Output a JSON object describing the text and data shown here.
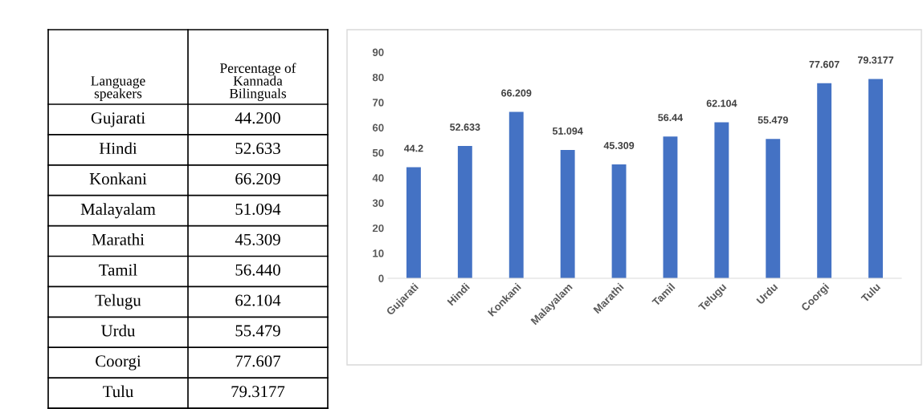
{
  "chart_data": [
    {
      "type": "other",
      "annotations": [
        "Language speakers",
        "Percentage of Kannada Bilinguals",
        "Gujarati",
        "44.200",
        "Hindi",
        "52.633",
        "Konkani",
        "66.209",
        "Malayalam",
        "51.094",
        "Marathi",
        "45.309",
        "Tamil",
        "56.440",
        "Telugu",
        "62.104",
        "Urdu",
        "55.479",
        "Coorgi",
        "77.607",
        "Tulu",
        "79.3177"
      ]
    },
    {
      "type": "bar",
      "categories": [
        "Gujarati",
        "Hindi",
        "Konkani",
        "Malayalam",
        "Marathi",
        "Tamil",
        "Telugu",
        "Urdu",
        "Coorgi",
        "Tulu"
      ],
      "values": [
        44.2,
        52.633,
        66.209,
        51.094,
        45.309,
        56.44,
        62.104,
        55.479,
        77.607,
        79.3177
      ],
      "color": "#4472c4",
      "ylim": [
        0,
        90
      ],
      "yticks": [
        0,
        10,
        20,
        30,
        40,
        50,
        60,
        70,
        80,
        90
      ],
      "data_labels": true
    }
  ]
}
